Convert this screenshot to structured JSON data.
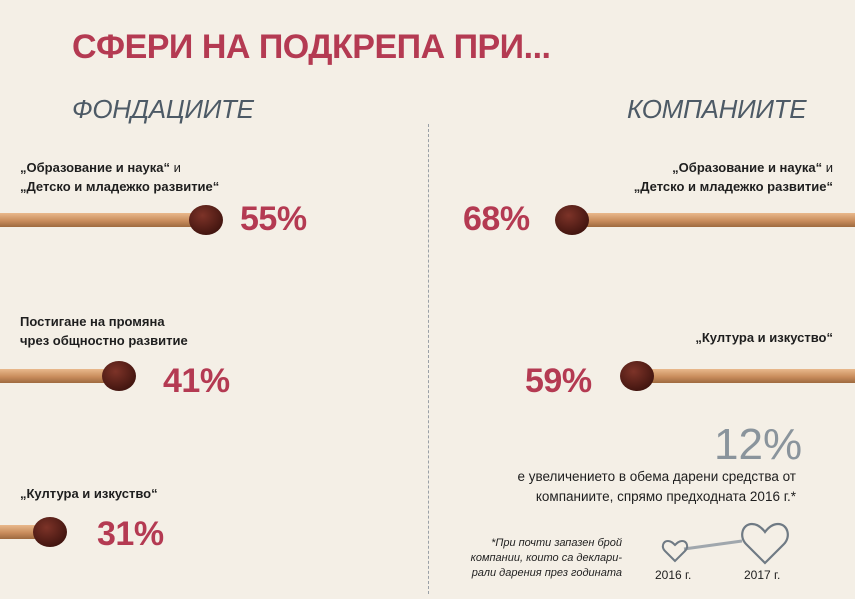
{
  "title": "СФЕРИ НА ПОДКРЕПА ПРИ...",
  "left_heading": "ФОНДАЦИИТЕ",
  "right_heading": "КОМПАНИИТЕ",
  "left_items": [
    {
      "label_line1_bold": "„Образование и наука“",
      "label_line1_rest": " и",
      "label_line2": "„Детско и младежко развитие“",
      "percent": "55%"
    },
    {
      "label_line1_bold": "Постигане на промяна",
      "label_line1_rest": "",
      "label_line2": "чрез общностно развитие",
      "percent": "41%"
    },
    {
      "label_line1_bold": "„Култура и изкуство“",
      "label_line1_rest": "",
      "label_line2": "",
      "percent": "31%"
    }
  ],
  "right_items": [
    {
      "label_line1_bold": "„Образование и наука“",
      "label_line1_rest": " и",
      "label_line2": "„Детско и младежко развитие“",
      "percent": "68%"
    },
    {
      "label_line1_bold": "„Култура и изкуство“",
      "label_line1_rest": "",
      "label_line2": "",
      "percent": "59%"
    }
  ],
  "increase": {
    "value": "12%",
    "description_line1": "е увеличението в обема дарени средства от",
    "description_line2": "компаниите, спрямо предходната 2016 г.*",
    "footnote_line1": "*При почти запазен брой",
    "footnote_line2": "компании, които са деклари-",
    "footnote_line3": "рали дарения през годината",
    "year_from": "2016 г.",
    "year_to": "2017 г."
  },
  "colors": {
    "accent": "#b43a52",
    "heading": "#4d5a66",
    "match_stick": "#d09a6c",
    "match_head": "#5a1f18",
    "background": "#f4efe6"
  },
  "chart_data": {
    "type": "bar",
    "groups": [
      {
        "name": "ФОНДАЦИИТЕ",
        "categories": [
          "„Образование и наука“ и „Детско и младежко развитие“",
          "Постигане на промяна чрез общностно развитие",
          "„Култура и изкуство“"
        ],
        "values": [
          55,
          41,
          31
        ]
      },
      {
        "name": "КОМПАНИИТЕ",
        "categories": [
          "„Образование и наука“ и „Детско и младежко развитие“",
          "„Култура и изкуство“"
        ],
        "values": [
          68,
          59
        ]
      }
    ]
  }
}
